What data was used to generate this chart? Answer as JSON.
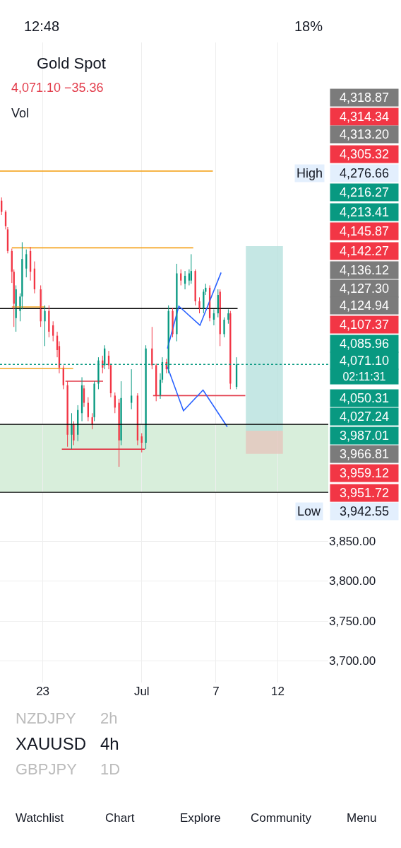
{
  "chart_data": {
    "type": "candlestick",
    "title": "Gold Spot",
    "subtitle": "4,071.10 −35.36",
    "x": [
      "--06-19T16:00",
      "--06-20T00:00",
      "--06-20T04:00",
      "--06-20T12:00",
      "--06-20T16:00",
      "--06-20T20:00",
      "--06-21T04:00",
      "--06-21T08:00",
      "--06-21T16:00",
      "--06-22T00:00",
      "--06-22T08:00",
      "--06-22T20:00",
      "--06-23T04:00",
      "--06-23T12:00",
      "--06-23T20:00",
      "--06-24T04:00",
      "--06-24T08:00",
      "--06-24T16:00",
      "--06-25T00:00",
      "--06-25T08:00",
      "--06-25T12:00",
      "--06-25T20:00",
      "--06-26T04:00",
      "--06-26T08:00",
      "--06-26T16:00",
      "--06-27T00:00",
      "--06-27T04:00",
      "--06-27T12:00",
      "--06-27T20:00",
      "--06-28T00:00",
      "--06-28T08:00",
      "--06-28T12:00",
      "--06-28T20:00",
      "--06-29T04:00",
      "--06-29T08:00",
      "--06-30T04:00",
      "--06-30T16:00",
      "--07-01T00:00",
      "--07-01T08:00",
      "--07-01T20:00",
      "--07-02T04:00",
      "--07-02T12:00",
      "--07-02T16:00",
      "--07-03T00:00",
      "--07-03T04:00",
      "--07-03T12:00",
      "--07-03T20:00",
      "--07-04T04:00",
      "--07-04T12:00",
      "--07-04T20:00",
      "--07-05T00:00",
      "--07-05T08:00",
      "--07-05T16:00",
      "--07-06T00:00",
      "--07-06T04:00",
      "--07-06T12:00",
      "--07-06T20:00",
      "--07-07T04:00",
      "--07-07T08:00",
      "--07-07T16:00",
      "--07-08T00:00",
      "--07-08T04:00",
      "--07-08T16:00"
    ],
    "ohlc": [
      [
        4276,
        4280,
        4258,
        4262
      ],
      [
        4262,
        4264,
        4240,
        4244
      ],
      [
        4240,
        4243,
        4210,
        4213
      ],
      [
        4213,
        4216,
        4173,
        4187
      ],
      [
        4187,
        4190,
        4118,
        4147
      ],
      [
        4129,
        4170,
        4112,
        4165
      ],
      [
        4138,
        4160,
        4125,
        4156
      ],
      [
        4156,
        4224,
        4140,
        4203
      ],
      [
        4191,
        4215,
        4180,
        4209
      ],
      [
        4213,
        4218,
        4176,
        4187
      ],
      [
        4191,
        4200,
        4160,
        4165
      ],
      [
        4165,
        4170,
        4118,
        4125
      ],
      [
        4125,
        4145,
        4094,
        4138
      ],
      [
        4138,
        4145,
        4105,
        4112
      ],
      [
        4120,
        4125,
        4100,
        4107
      ],
      [
        4107,
        4112,
        4080,
        4089
      ],
      [
        4094,
        4100,
        4060,
        4067
      ],
      [
        4067,
        4070,
        4040,
        4045
      ],
      [
        4045,
        4050,
        3968,
        3983
      ],
      [
        3983,
        4010,
        3965,
        3996
      ],
      [
        3996,
        4000,
        3970,
        3976
      ],
      [
        3983,
        4020,
        3975,
        4014
      ],
      [
        4010,
        4055,
        4000,
        4045
      ],
      [
        4041,
        4045,
        4018,
        4023
      ],
      [
        4023,
        4030,
        4000,
        4005
      ],
      [
        4005,
        4010,
        3990,
        3996
      ],
      [
        4005,
        4050,
        4000,
        4047
      ],
      [
        4047,
        4080,
        4040,
        4076
      ],
      [
        4076,
        4082,
        4060,
        4067
      ],
      [
        4070,
        4095,
        4065,
        4091
      ],
      [
        4082,
        4088,
        4065,
        4070
      ],
      [
        4070,
        4072,
        4030,
        4035
      ],
      [
        4032,
        4036,
        4010,
        4017
      ],
      [
        4023,
        4028,
        3943,
        3976
      ],
      [
        3976,
        4050,
        3970,
        4029
      ],
      [
        4023,
        4065,
        4015,
        4032
      ],
      [
        4032,
        4035,
        3970,
        3976
      ],
      [
        3981,
        3985,
        3961,
        3973
      ],
      [
        3973,
        4095,
        3965,
        4091
      ],
      [
        4091,
        4118,
        4065,
        4070
      ],
      [
        4070,
        4072,
        4025,
        4032
      ],
      [
        4032,
        4060,
        4028,
        4052
      ],
      [
        4052,
        4080,
        4048,
        4074
      ],
      [
        4074,
        4078,
        4060,
        4065
      ],
      [
        4065,
        4145,
        4060,
        4138
      ],
      [
        4138,
        4142,
        4105,
        4109
      ],
      [
        4109,
        4197,
        4100,
        4185
      ],
      [
        4185,
        4190,
        4170,
        4176
      ],
      [
        4172,
        4188,
        4165,
        4182
      ],
      [
        4176,
        4190,
        4170,
        4185
      ],
      [
        4176,
        4209,
        4172,
        4188
      ],
      [
        4188,
        4190,
        4145,
        4150
      ],
      [
        4150,
        4155,
        4135,
        4141
      ],
      [
        4141,
        4165,
        4135,
        4162
      ],
      [
        4162,
        4172,
        4158,
        4167
      ],
      [
        4167,
        4170,
        4125,
        4129
      ],
      [
        4127,
        4140,
        4120,
        4135
      ],
      [
        4135,
        4165,
        4130,
        4158
      ],
      [
        4162,
        4165,
        4094,
        4109
      ],
      [
        4109,
        4130,
        4105,
        4127
      ],
      [
        4127,
        4140,
        4122,
        4135
      ],
      [
        4135,
        4138,
        4040,
        4047
      ],
      [
        4043,
        4080,
        4040,
        4071
      ]
    ],
    "series": [
      {
        "type": "line",
        "color": "#f5a623",
        "x": [
          "--06-19T13:00",
          "--07-06T18:00"
        ],
        "values": [
          4313,
          4313
        ]
      },
      {
        "type": "line",
        "color": "#f5a623",
        "x": [
          "--06-20T12:00",
          "--07-05T04:00"
        ],
        "values": [
          4217,
          4217
        ]
      },
      {
        "type": "line",
        "color": "#f5a623",
        "x": [
          "--06-20T12:00",
          "--06-23T05:00"
        ],
        "values": [
          4143,
          4143
        ]
      },
      {
        "type": "line",
        "color": "#f5a623",
        "x": [
          "--06-19T13:00",
          "--06-25T11:00"
        ],
        "values": [
          4066,
          4066
        ]
      },
      {
        "type": "line",
        "color": "#000000",
        "x": [
          "--06-19T13:00",
          "--07-08T18:00"
        ],
        "values": [
          4141,
          4141
        ]
      },
      {
        "type": "line",
        "color": "#e23b4a",
        "x": [
          "--06-24T20:00",
          "--06-27T21:00"
        ],
        "values": [
          4050,
          4050
        ]
      },
      {
        "type": "line",
        "color": "#e23b4a",
        "x": [
          "--06-24T13:00",
          "--07-01T06:00"
        ],
        "values": [
          3965,
          3965
        ]
      },
      {
        "type": "line",
        "color": "#e23b4a",
        "x": [
          "--07-01T22:00",
          "--07-09T09:00"
        ],
        "values": [
          4032,
          4032
        ]
      },
      {
        "type": "line",
        "color": "#2962ff",
        "x": [
          "--07-03T02:00",
          "--07-04T00:00",
          "--07-05T17:00",
          "--07-07T10:00"
        ],
        "values": [
          4091,
          4144,
          4120,
          4186
        ]
      },
      {
        "type": "line",
        "color": "#2962ff",
        "x": [
          "--07-03T02:00",
          "--07-04T09:00",
          "--07-05T23:00",
          "--07-07T22:00"
        ],
        "values": [
          4068,
          4013,
          4039,
          3993
        ]
      },
      {
        "type": "bar",
        "color": "#b2dfdb",
        "x": [
          "--07-10T22:00"
        ],
        "base": [
          3988
        ],
        "values": [
          231
        ]
      },
      {
        "type": "bar",
        "color": "#e6c3bb",
        "x": [
          "--07-10T22:00"
        ],
        "base": [
          3959
        ],
        "values": [
          29
        ]
      }
    ],
    "ref_lines": [
      {
        "axis": "y",
        "value": 3996,
        "color": "#000000",
        "line_style": "solid"
      },
      {
        "axis": "y",
        "value": 3911,
        "color": "#000000",
        "line_style": "solid"
      },
      {
        "axis": "y",
        "value": 4071,
        "color": "#089981",
        "line_style": "dotted"
      }
    ],
    "bands": [
      {
        "axis": "y",
        "from": 3911,
        "to": 3996,
        "color": "#d8eedb"
      }
    ],
    "xlim": [
      "--06-19T13:00",
      "--07-16T02:00"
    ],
    "xticks": [
      {
        "value": "--06-23",
        "label": "23"
      },
      {
        "value": "--07-01",
        "label": "Jul"
      },
      {
        "value": "--07-07",
        "label": "7"
      },
      {
        "value": "--07-12",
        "label": "12"
      }
    ],
    "ylim": [
      3673,
      4474
    ],
    "yticks": [
      {
        "value": 3700,
        "label": "3,700.00"
      },
      {
        "value": 3750,
        "label": "3,750.00"
      },
      {
        "value": 3800,
        "label": "3,800.00"
      },
      {
        "value": 3850,
        "label": "3,850.00"
      }
    ],
    "grid": true,
    "annotations": [
      "Vol",
      "4,318.87",
      "4,314.34",
      "4,313.20",
      "4,305.32",
      "High",
      "4,276.66",
      "4,216.27",
      "4,213.41",
      "4,145.87",
      "4,142.27",
      "4,136.12",
      "4,127.30",
      "4,124.94",
      "4,107.37",
      "4,085.96",
      "4,071.10",
      "02:11:31",
      "4,050.31",
      "4,027.24",
      "3,987.01",
      "3,966.81",
      "3,959.12",
      "3,951.72",
      "Low",
      "3,942.55",
      "NZDJPY",
      "2h",
      "XAUUSD",
      "4h",
      "GBPJPY",
      "1D",
      "Watchlist",
      "Chart",
      "Explore",
      "Community",
      "Menu",
      "12:48",
      "18%"
    ]
  }
}
